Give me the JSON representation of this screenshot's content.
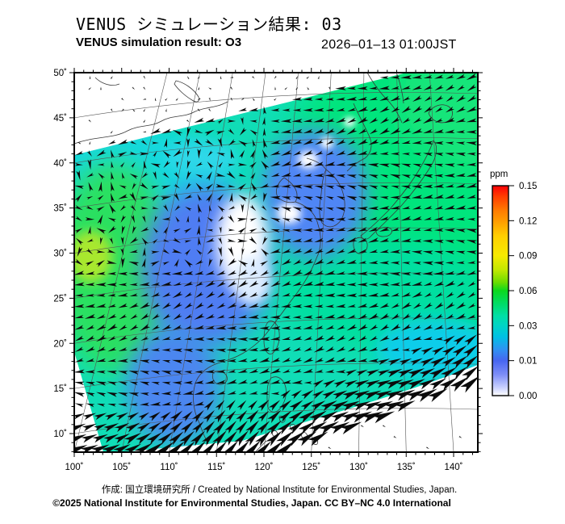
{
  "header": {
    "title_ja": "VENUS シミュレーション結果: 03",
    "title_en": "VENUS simulation result: O3",
    "timestamp": "2026–01–13 01:00JST"
  },
  "map": {
    "lat_labels": [
      "50˚",
      "45˚",
      "40˚",
      "35˚",
      "30˚",
      "25˚",
      "20˚",
      "15˚",
      "10˚"
    ],
    "lon_labels": [
      "100˚",
      "105˚",
      "110˚",
      "115˚",
      "120˚",
      "125˚",
      "130˚",
      "135˚",
      "140˚"
    ]
  },
  "colorbar": {
    "unit": "ppm",
    "tick_labels": [
      "0.15",
      "0.12",
      "0.09",
      "0.06",
      "0.03",
      "0.01",
      "0.00"
    ],
    "gradient": [
      [
        0.0,
        "#fb0007"
      ],
      [
        0.05,
        "#ff3c00"
      ],
      [
        0.12,
        "#ff7d00"
      ],
      [
        0.167,
        "#ff9b00"
      ],
      [
        0.24,
        "#ffcf00"
      ],
      [
        0.333,
        "#f6ea00"
      ],
      [
        0.4,
        "#c3e800"
      ],
      [
        0.46,
        "#6cdc00"
      ],
      [
        0.5,
        "#0cd81e"
      ],
      [
        0.56,
        "#00dc64"
      ],
      [
        0.62,
        "#00dfa6"
      ],
      [
        0.667,
        "#00d4c6"
      ],
      [
        0.72,
        "#00c0e4"
      ],
      [
        0.78,
        "#2f92f2"
      ],
      [
        0.833,
        "#4766f0"
      ],
      [
        0.9,
        "#7e8ef7"
      ],
      [
        0.96,
        "#c7cfff"
      ],
      [
        1.0,
        "#ffffff"
      ]
    ]
  },
  "footer": {
    "credit": "作成: 国立環境研究所 / Created by National Institute for Environmental Studies, Japan.",
    "license": "©2025 National Institute for Environmental Studies, Japan. CC BY–NC 4.0 International"
  },
  "chart_data": {
    "type": "heatmap",
    "variable": "O3",
    "unit": "ppm",
    "scale_ticks": [
      0.15,
      0.12,
      0.09,
      0.06,
      0.03,
      0.01,
      0.0
    ],
    "map_extent": {
      "lon_deg": [
        100,
        140
      ],
      "lat_deg": [
        10,
        50
      ]
    },
    "overlays": [
      "wind-vectors",
      "coastlines",
      "graticule"
    ],
    "field_summary": {
      "swath": "tilted satellite swath, white (no data) above top-left edge and below bottom-right edge",
      "regions": [
        {
          "area": "east of Japan / right half",
          "value_ppm": 0.05
        },
        {
          "area": "upper-left of swath 38-42N",
          "value_ppm": 0.035
        },
        {
          "area": "central China 27-35N 108-118E",
          "value_ppm": 0.01
        },
        {
          "area": "central China white patches",
          "value_ppm": 0.0
        },
        {
          "area": "Yellow Sea / Korea",
          "value_ppm": 0.015
        },
        {
          "area": "SW corner 100-105E 25-30N lime spot",
          "value_ppm": 0.075
        },
        {
          "area": "Indochina blue patch",
          "value_ppm": 0.02
        }
      ]
    }
  }
}
